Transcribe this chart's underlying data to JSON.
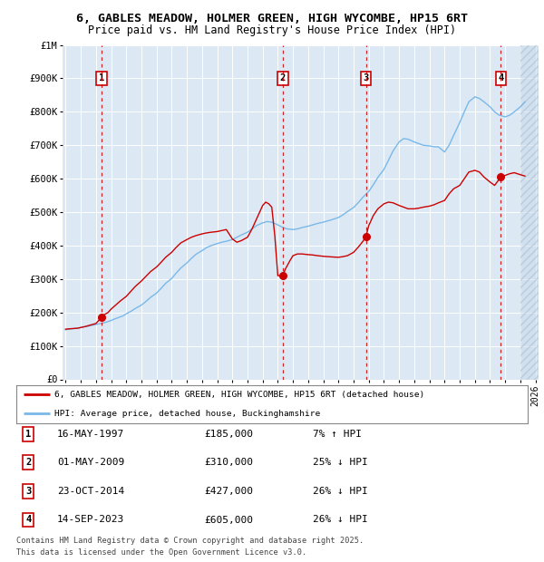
{
  "title_line1": "6, GABLES MEADOW, HOLMER GREEN, HIGH WYCOMBE, HP15 6RT",
  "title_line2": "Price paid vs. HM Land Registry's House Price Index (HPI)",
  "ylim": [
    0,
    1000000
  ],
  "xlim_start": 1994.8,
  "xlim_end": 2026.2,
  "yticks": [
    0,
    100000,
    200000,
    300000,
    400000,
    500000,
    600000,
    700000,
    800000,
    900000,
    1000000
  ],
  "ytick_labels": [
    "£0",
    "£100K",
    "£200K",
    "£300K",
    "£400K",
    "£500K",
    "£600K",
    "£700K",
    "£800K",
    "£900K",
    "£1M"
  ],
  "background_color": "#dce9f5",
  "grid_color": "#ffffff",
  "sale_color": "#cc0000",
  "hpi_color": "#7ab8e8",
  "dashed_line_color": "#cc0000",
  "transaction_box_color": "#cc0000",
  "transactions": [
    {
      "num": 1,
      "date": "16-MAY-1997",
      "price": 185000,
      "year": 1997.37,
      "hpi_pct": "7% ↑ HPI"
    },
    {
      "num": 2,
      "date": "01-MAY-2009",
      "price": 310000,
      "year": 2009.33,
      "hpi_pct": "25% ↓ HPI"
    },
    {
      "num": 3,
      "date": "23-OCT-2014",
      "price": 427000,
      "year": 2014.81,
      "hpi_pct": "26% ↓ HPI"
    },
    {
      "num": 4,
      "date": "14-SEP-2023",
      "price": 605000,
      "year": 2023.71,
      "hpi_pct": "26% ↓ HPI"
    }
  ],
  "legend_sale_label": "6, GABLES MEADOW, HOLMER GREEN, HIGH WYCOMBE, HP15 6RT (detached house)",
  "legend_hpi_label": "HPI: Average price, detached house, Buckinghamshire",
  "footer_line1": "Contains HM Land Registry data © Crown copyright and database right 2025.",
  "footer_line2": "This data is licensed under the Open Government Licence v3.0.",
  "xticks": [
    1995,
    1996,
    1997,
    1998,
    1999,
    2000,
    2001,
    2002,
    2003,
    2004,
    2005,
    2006,
    2007,
    2008,
    2009,
    2010,
    2011,
    2012,
    2013,
    2014,
    2015,
    2016,
    2017,
    2018,
    2019,
    2020,
    2021,
    2022,
    2023,
    2024,
    2025,
    2026
  ],
  "hpi_series_x": [
    1995.0,
    1995.1,
    1995.2,
    1995.4,
    1995.6,
    1995.8,
    1996.0,
    1996.2,
    1996.4,
    1996.6,
    1996.8,
    1997.0,
    1997.2,
    1997.4,
    1997.6,
    1997.8,
    1998.0,
    1998.2,
    1998.5,
    1998.8,
    1999.0,
    1999.3,
    1999.6,
    2000.0,
    2000.3,
    2000.6,
    2001.0,
    2001.3,
    2001.6,
    2002.0,
    2002.3,
    2002.6,
    2003.0,
    2003.3,
    2003.6,
    2004.0,
    2004.3,
    2004.6,
    2005.0,
    2005.3,
    2005.6,
    2006.0,
    2006.3,
    2006.6,
    2007.0,
    2007.3,
    2007.6,
    2008.0,
    2008.3,
    2008.6,
    2009.0,
    2009.3,
    2009.6,
    2010.0,
    2010.3,
    2010.6,
    2011.0,
    2011.3,
    2011.6,
    2012.0,
    2012.3,
    2012.6,
    2013.0,
    2013.3,
    2013.6,
    2014.0,
    2014.3,
    2014.6,
    2015.0,
    2015.3,
    2015.6,
    2016.0,
    2016.3,
    2016.6,
    2017.0,
    2017.3,
    2017.6,
    2018.0,
    2018.3,
    2018.6,
    2019.0,
    2019.3,
    2019.6,
    2020.0,
    2020.3,
    2020.6,
    2021.0,
    2021.3,
    2021.6,
    2022.0,
    2022.3,
    2022.6,
    2023.0,
    2023.3,
    2023.6,
    2024.0,
    2024.3,
    2024.6,
    2025.0,
    2025.3
  ],
  "hpi_series_y": [
    148000,
    149000,
    150000,
    151000,
    152000,
    153000,
    155000,
    157000,
    158000,
    160000,
    162000,
    164000,
    166000,
    168000,
    170000,
    173000,
    176000,
    180000,
    185000,
    190000,
    196000,
    203000,
    212000,
    222000,
    233000,
    245000,
    258000,
    272000,
    287000,
    302000,
    318000,
    333000,
    348000,
    362000,
    374000,
    385000,
    394000,
    400000,
    406000,
    410000,
    413000,
    418000,
    425000,
    432000,
    440000,
    450000,
    460000,
    468000,
    472000,
    470000,
    462000,
    455000,
    450000,
    448000,
    450000,
    454000,
    458000,
    462000,
    466000,
    470000,
    474000,
    478000,
    484000,
    492000,
    502000,
    514000,
    528000,
    544000,
    562000,
    582000,
    604000,
    628000,
    655000,
    683000,
    710000,
    720000,
    718000,
    710000,
    705000,
    700000,
    698000,
    696000,
    695000,
    680000,
    700000,
    730000,
    768000,
    800000,
    830000,
    845000,
    840000,
    830000,
    815000,
    800000,
    790000,
    785000,
    790000,
    800000,
    815000,
    830000
  ],
  "sale_series_x": [
    1995.0,
    1995.2,
    1995.5,
    1995.8,
    1996.0,
    1996.3,
    1996.6,
    1997.0,
    1997.37,
    1997.5,
    1997.8,
    1998.0,
    1998.3,
    1998.6,
    1999.0,
    1999.3,
    1999.6,
    2000.0,
    2000.3,
    2000.6,
    2001.0,
    2001.3,
    2001.6,
    2002.0,
    2002.3,
    2002.6,
    2003.0,
    2003.3,
    2003.6,
    2004.0,
    2004.3,
    2004.6,
    2005.0,
    2005.3,
    2005.6,
    2006.0,
    2006.3,
    2006.6,
    2007.0,
    2007.3,
    2007.6,
    2008.0,
    2008.2,
    2008.4,
    2008.6,
    2008.8,
    2009.0,
    2009.33,
    2009.5,
    2009.8,
    2010.0,
    2010.3,
    2010.6,
    2011.0,
    2011.3,
    2011.6,
    2012.0,
    2012.3,
    2012.6,
    2013.0,
    2013.3,
    2013.6,
    2014.0,
    2014.3,
    2014.6,
    2014.81,
    2015.0,
    2015.3,
    2015.6,
    2016.0,
    2016.3,
    2016.6,
    2017.0,
    2017.3,
    2017.6,
    2018.0,
    2018.3,
    2018.6,
    2019.0,
    2019.3,
    2019.6,
    2020.0,
    2020.3,
    2020.6,
    2021.0,
    2021.3,
    2021.6,
    2022.0,
    2022.3,
    2022.6,
    2023.0,
    2023.3,
    2023.71,
    2024.0,
    2024.3,
    2024.6,
    2025.0,
    2025.3
  ],
  "sale_series_y": [
    150000,
    151000,
    152000,
    153000,
    155000,
    158000,
    162000,
    167000,
    185000,
    192000,
    200000,
    210000,
    222000,
    234000,
    248000,
    263000,
    278000,
    294000,
    308000,
    322000,
    336000,
    350000,
    365000,
    380000,
    395000,
    408000,
    418000,
    425000,
    430000,
    435000,
    438000,
    440000,
    442000,
    445000,
    448000,
    420000,
    410000,
    415000,
    425000,
    450000,
    480000,
    520000,
    530000,
    525000,
    515000,
    430000,
    310000,
    310000,
    330000,
    355000,
    370000,
    375000,
    375000,
    373000,
    372000,
    370000,
    368000,
    367000,
    366000,
    365000,
    367000,
    370000,
    380000,
    395000,
    412000,
    427000,
    460000,
    490000,
    510000,
    525000,
    530000,
    528000,
    520000,
    515000,
    510000,
    510000,
    512000,
    515000,
    518000,
    522000,
    528000,
    535000,
    555000,
    570000,
    580000,
    600000,
    620000,
    625000,
    620000,
    605000,
    590000,
    580000,
    605000,
    610000,
    615000,
    618000,
    612000,
    608000
  ]
}
